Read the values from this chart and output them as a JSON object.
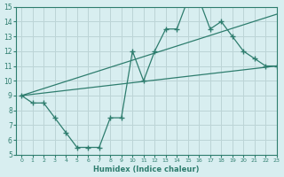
{
  "line1_x": [
    0,
    1,
    2,
    3,
    4,
    5,
    6,
    7,
    8,
    9,
    10,
    11,
    12,
    13,
    14,
    15,
    16,
    17,
    18,
    19,
    20,
    21,
    22,
    23
  ],
  "line1_y": [
    9.0,
    8.5,
    8.5,
    7.5,
    6.5,
    5.5,
    5.5,
    5.5,
    7.5,
    7.5,
    12.0,
    10.0,
    12.0,
    13.5,
    13.5,
    15.5,
    15.5,
    13.5,
    14.0,
    13.0,
    12.0,
    11.5,
    11.0,
    11.0
  ],
  "line2_x": [
    0,
    23
  ],
  "line2_y": [
    9.0,
    14.5
  ],
  "line3_x": [
    0,
    23
  ],
  "line3_y": [
    9.0,
    11.0
  ],
  "color": "#2e7d6e",
  "bg_color": "#d8eef0",
  "grid_color": "#bcd4d6",
  "xlabel": "Humidex (Indice chaleur)",
  "xlim": [
    -0.5,
    23
  ],
  "ylim": [
    5,
    15
  ],
  "xticks": [
    0,
    1,
    2,
    3,
    4,
    5,
    6,
    7,
    8,
    9,
    10,
    11,
    12,
    13,
    14,
    15,
    16,
    17,
    18,
    19,
    20,
    21,
    22,
    23
  ],
  "yticks": [
    5,
    6,
    7,
    8,
    9,
    10,
    11,
    12,
    13,
    14,
    15
  ]
}
